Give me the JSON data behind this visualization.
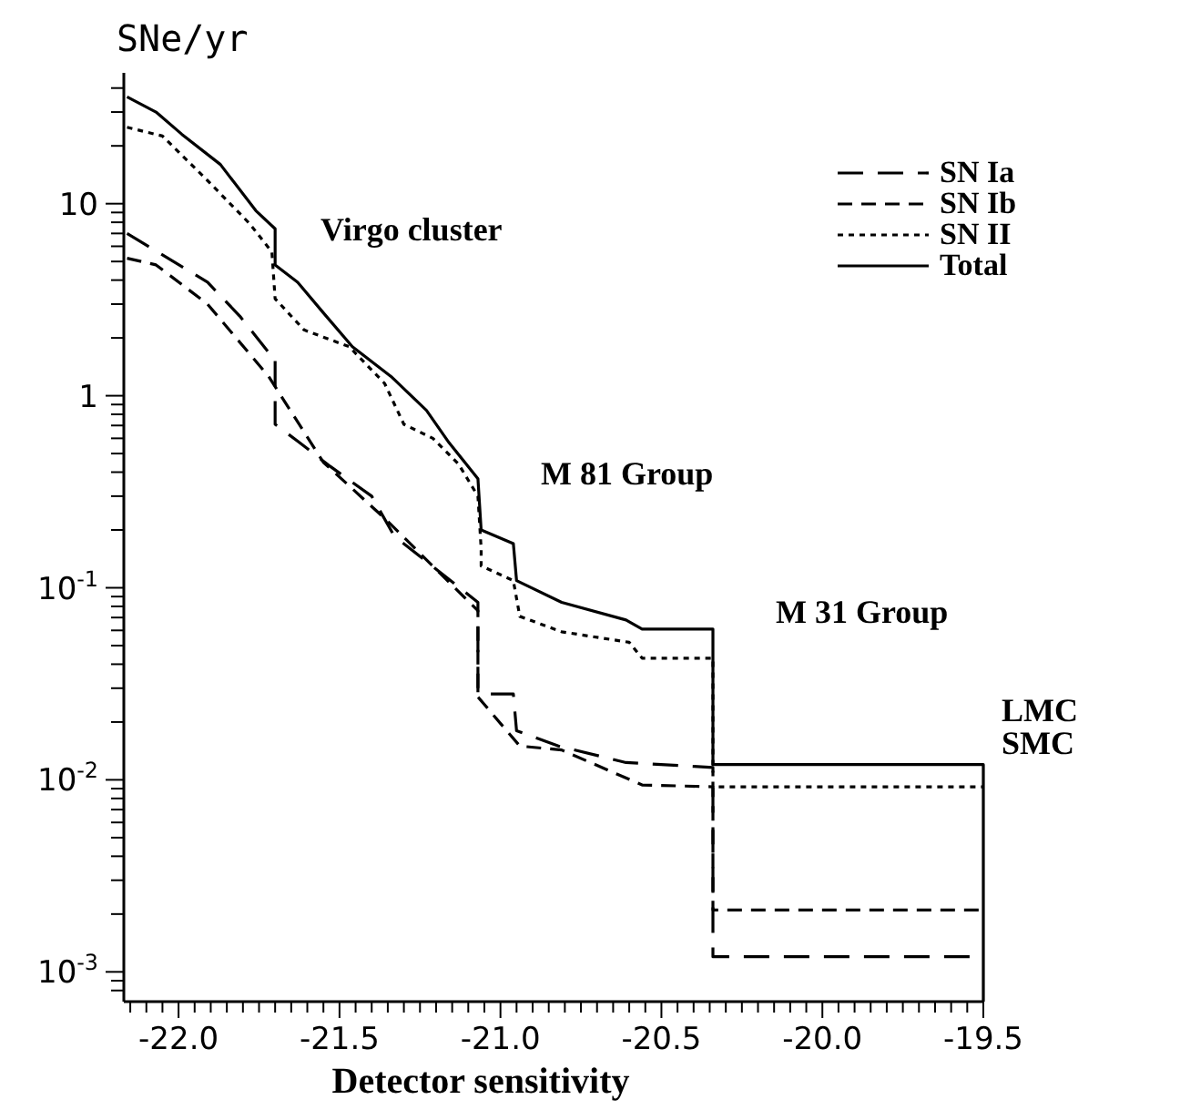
{
  "chart_data": {
    "type": "line",
    "xlabel": "Detector sensitivity",
    "ylabel": "SNe/yr",
    "log": "y",
    "grid": false,
    "legend": "top right",
    "xlim": [
      -22.17,
      -19.5
    ],
    "ylim": [
      0.0007,
      48
    ],
    "xticks": [
      {
        "value": -22.15,
        "label": null
      },
      {
        "value": -22.1,
        "label": null
      },
      {
        "value": -22.05,
        "label": null
      },
      {
        "value": -22,
        "label": "-22.0"
      },
      {
        "value": -21.95,
        "label": null
      },
      {
        "value": -21.9,
        "label": null
      },
      {
        "value": -21.85,
        "label": null
      },
      {
        "value": -21.8,
        "label": null
      },
      {
        "value": -21.75,
        "label": null
      },
      {
        "value": -21.7,
        "label": null
      },
      {
        "value": -21.65,
        "label": null
      },
      {
        "value": -21.6,
        "label": null
      },
      {
        "value": -21.55,
        "label": null
      },
      {
        "value": -21.5,
        "label": "-21.5"
      },
      {
        "value": -21.45,
        "label": null
      },
      {
        "value": -21.4,
        "label": null
      },
      {
        "value": -21.35,
        "label": null
      },
      {
        "value": -21.3,
        "label": null
      },
      {
        "value": -21.25,
        "label": null
      },
      {
        "value": -21.2,
        "label": null
      },
      {
        "value": -21.15,
        "label": null
      },
      {
        "value": -21.1,
        "label": null
      },
      {
        "value": -21.05,
        "label": null
      },
      {
        "value": -21,
        "label": "-21.0"
      },
      {
        "value": -20.95,
        "label": null
      },
      {
        "value": -20.9,
        "label": null
      },
      {
        "value": -20.85,
        "label": null
      },
      {
        "value": -20.8,
        "label": null
      },
      {
        "value": -20.75,
        "label": null
      },
      {
        "value": -20.7,
        "label": null
      },
      {
        "value": -20.65,
        "label": null
      },
      {
        "value": -20.6,
        "label": null
      },
      {
        "value": -20.55,
        "label": null
      },
      {
        "value": -20.5,
        "label": "-20.5"
      },
      {
        "value": -20.45,
        "label": null
      },
      {
        "value": -20.4,
        "label": null
      },
      {
        "value": -20.35,
        "label": null
      },
      {
        "value": -20.3,
        "label": null
      },
      {
        "value": -20.25,
        "label": null
      },
      {
        "value": -20.2,
        "label": null
      },
      {
        "value": -20.15,
        "label": null
      },
      {
        "value": -20.1,
        "label": null
      },
      {
        "value": -20.05,
        "label": null
      },
      {
        "value": -20,
        "label": "-20.0"
      },
      {
        "value": -19.95,
        "label": null
      },
      {
        "value": -19.9,
        "label": null
      },
      {
        "value": -19.85,
        "label": null
      },
      {
        "value": -19.8,
        "label": null
      },
      {
        "value": -19.75,
        "label": null
      },
      {
        "value": -19.7,
        "label": null
      },
      {
        "value": -19.65,
        "label": null
      },
      {
        "value": -19.6,
        "label": null
      },
      {
        "value": -19.55,
        "label": null
      },
      {
        "value": -19.5,
        "label": "-19.5"
      }
    ],
    "yticks": [
      {
        "value": 0.0008,
        "label": null
      },
      {
        "value": 0.0009,
        "label": null
      },
      {
        "value": 0.001,
        "label": "10$^{-3}$"
      },
      {
        "value": 0.002,
        "label": null
      },
      {
        "value": 0.003,
        "label": null
      },
      {
        "value": 0.004,
        "label": null
      },
      {
        "value": 0.005,
        "label": null
      },
      {
        "value": 0.006,
        "label": null
      },
      {
        "value": 0.007,
        "label": null
      },
      {
        "value": 0.008,
        "label": null
      },
      {
        "value": 0.009,
        "label": null
      },
      {
        "value": 0.01,
        "label": "10$^{-2}$"
      },
      {
        "value": 0.02,
        "label": null
      },
      {
        "value": 0.03,
        "label": null
      },
      {
        "value": 0.04,
        "label": null
      },
      {
        "value": 0.05,
        "label": null
      },
      {
        "value": 0.06,
        "label": null
      },
      {
        "value": 0.07,
        "label": null
      },
      {
        "value": 0.08,
        "label": null
      },
      {
        "value": 0.09,
        "label": null
      },
      {
        "value": 0.1,
        "label": "10$^{-1}$"
      },
      {
        "value": 0.2,
        "label": null
      },
      {
        "value": 0.3,
        "label": null
      },
      {
        "value": 0.4,
        "label": null
      },
      {
        "value": 0.5,
        "label": null
      },
      {
        "value": 0.6,
        "label": null
      },
      {
        "value": 0.7,
        "label": null
      },
      {
        "value": 0.8,
        "label": null
      },
      {
        "value": 0.9,
        "label": null
      },
      1,
      {
        "value": 2,
        "label": null
      },
      {
        "value": 3,
        "label": null
      },
      {
        "value": 4,
        "label": null
      },
      {
        "value": 5,
        "label": null
      },
      {
        "value": 6,
        "label": null
      },
      {
        "value": 7,
        "label": null
      },
      {
        "value": 8,
        "label": null
      },
      {
        "value": 9,
        "label": null
      },
      10,
      {
        "value": 20,
        "label": null
      },
      {
        "value": 30,
        "label": null
      },
      {
        "value": 40,
        "label": null
      }
    ],
    "series": [
      {
        "name": "SN Ia",
        "color": "#000000",
        "line_style": "dashed",
        "x": [
          -22.16,
          -21.91,
          -21.81,
          -21.71,
          -21.7,
          -21.7,
          -21.63,
          -21.53,
          -21.4,
          -21.33,
          -21.07,
          -21.07,
          -20.96,
          -20.95,
          -20.82,
          -20.61,
          -20.34,
          -20.34,
          -19.5
        ],
        "values": [
          7.0,
          3.9,
          2.6,
          1.6,
          1.6,
          0.71,
          0.58,
          0.43,
          0.3,
          0.186,
          0.084,
          0.028,
          0.028,
          0.018,
          0.015,
          0.0123,
          0.0116,
          0.0012,
          0.0012
        ]
      },
      {
        "name": "SN Ib",
        "color": "#000000",
        "line_style": "dashed",
        "x": [
          -22.16,
          -22.07,
          -21.91,
          -21.72,
          -21.55,
          -21.36,
          -21.07,
          -21.07,
          -20.94,
          -20.81,
          -20.56,
          -20.34,
          -20.34,
          -19.5
        ],
        "values": [
          5.2,
          4.8,
          3.0,
          1.26,
          0.45,
          0.23,
          0.076,
          0.027,
          0.015,
          0.0143,
          0.0094,
          0.0092,
          0.0021,
          0.0021
        ]
      },
      {
        "name": "SN II",
        "color": "#000000",
        "line_style": "dotted",
        "x": [
          -22.16,
          -22.05,
          -21.91,
          -21.78,
          -21.71,
          -21.7,
          -21.61,
          -21.47,
          -21.36,
          -21.3,
          -21.21,
          -21.13,
          -21.07,
          -21.06,
          -21.06,
          -20.96,
          -20.94,
          -20.81,
          -20.6,
          -20.56,
          -20.34,
          -20.34,
          -19.5
        ],
        "values": [
          25,
          22.5,
          13.2,
          7.9,
          5.6,
          3.2,
          2.2,
          1.8,
          1.16,
          0.71,
          0.6,
          0.44,
          0.3,
          0.16,
          0.13,
          0.109,
          0.071,
          0.059,
          0.052,
          0.043,
          0.043,
          0.0092,
          0.0092
        ]
      },
      {
        "name": "Total",
        "color": "#000000",
        "line_style": "solid",
        "x": [
          -22.16,
          -22.07,
          -21.99,
          -21.87,
          -21.76,
          -21.7,
          -21.7,
          -21.63,
          -21.55,
          -21.46,
          -21.34,
          -21.23,
          -21.16,
          -21.07,
          -21.06,
          -20.96,
          -20.95,
          -20.81,
          -20.61,
          -20.56,
          -20.34,
          -20.34,
          -19.5,
          -19.5
        ],
        "values": [
          36,
          30,
          23,
          16,
          9.2,
          7.4,
          4.8,
          3.9,
          2.7,
          1.8,
          1.26,
          0.84,
          0.57,
          0.37,
          0.2,
          0.17,
          0.109,
          0.084,
          0.068,
          0.061,
          0.061,
          0.012,
          0.012,
          0.0007
        ]
      }
    ],
    "annotations": [
      "Virgo cluster",
      "M 81 Group",
      "M 31 Group",
      "LMC",
      "SMC"
    ]
  }
}
